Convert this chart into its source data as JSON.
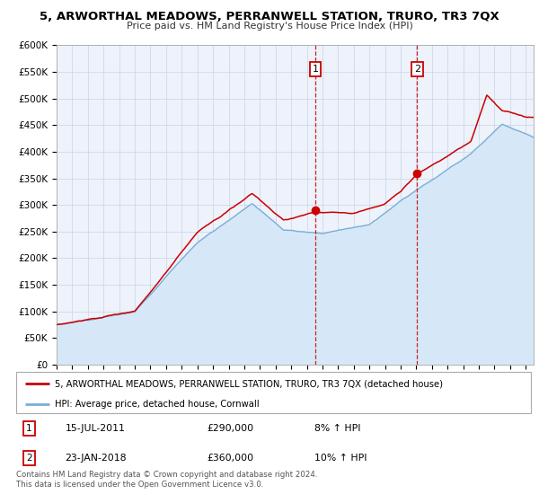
{
  "title": "5, ARWORTHAL MEADOWS, PERRANWELL STATION, TRURO, TR3 7QX",
  "subtitle": "Price paid vs. HM Land Registry's House Price Index (HPI)",
  "ylim": [
    0,
    600000
  ],
  "yticks": [
    0,
    50000,
    100000,
    150000,
    200000,
    250000,
    300000,
    350000,
    400000,
    450000,
    500000,
    550000,
    600000
  ],
  "ytick_labels": [
    "£0",
    "£50K",
    "£100K",
    "£150K",
    "£200K",
    "£250K",
    "£300K",
    "£350K",
    "£400K",
    "£450K",
    "£500K",
    "£550K",
    "£600K"
  ],
  "xlim_start": 1995.0,
  "xlim_end": 2025.5,
  "xticks": [
    1995,
    1996,
    1997,
    1998,
    1999,
    2000,
    2001,
    2002,
    2003,
    2004,
    2005,
    2006,
    2007,
    2008,
    2009,
    2010,
    2011,
    2012,
    2013,
    2014,
    2015,
    2016,
    2017,
    2018,
    2019,
    2020,
    2021,
    2022,
    2023,
    2024,
    2025
  ],
  "red_line_color": "#cc0000",
  "blue_line_color": "#7aaed6",
  "blue_fill_color": "#d6e8f7",
  "marker1_x": 2011.54,
  "marker1_y": 290000,
  "marker2_x": 2018.06,
  "marker2_y": 360000,
  "vline1_x": 2011.54,
  "vline2_x": 2018.06,
  "label_red": "5, ARWORTHAL MEADOWS, PERRANWELL STATION, TRURO, TR3 7QX (detached house)",
  "label_blue": "HPI: Average price, detached house, Cornwall",
  "sale1_date": "15-JUL-2011",
  "sale1_price": "£290,000",
  "sale1_hpi": "8% ↑ HPI",
  "sale2_date": "23-JAN-2018",
  "sale2_price": "£360,000",
  "sale2_hpi": "10% ↑ HPI",
  "footer1": "Contains HM Land Registry data © Crown copyright and database right 2024.",
  "footer2": "This data is licensed under the Open Government Licence v3.0.",
  "bg_color": "#edf2fb",
  "grid_color": "#c8d4e8"
}
